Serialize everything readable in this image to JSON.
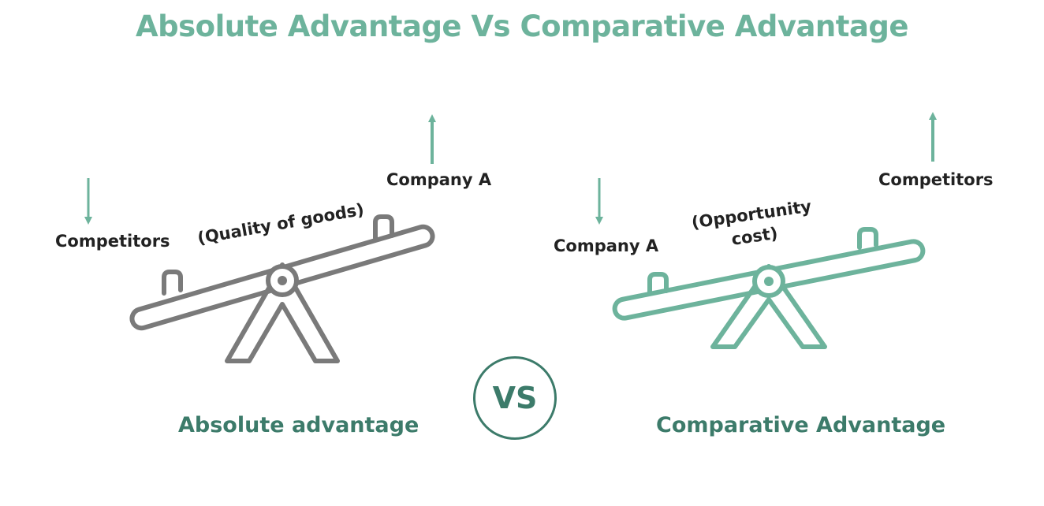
{
  "title": "Absolute Advantage Vs Comparative Advantage",
  "colors": {
    "accent": "#6db39c",
    "dark_accent": "#3c7b6a",
    "seesaw_gray": "#7a7a7a",
    "text": "#222222"
  },
  "left_panel": {
    "low_side_label": "Competitors",
    "high_side_label": "Company A",
    "beam_label": "(Quality of goods)",
    "caption": "Absolute advantage",
    "low_arrow": "down-arrow-icon",
    "high_arrow": "up-arrow-icon"
  },
  "right_panel": {
    "low_side_label": "Company A",
    "high_side_label": "Competitors",
    "beam_label_line1": "(Opportunity",
    "beam_label_line2": "cost)",
    "caption": "Comparative Advantage",
    "low_arrow": "down-arrow-icon",
    "high_arrow": "up-arrow-icon"
  },
  "vs_badge": "VS"
}
